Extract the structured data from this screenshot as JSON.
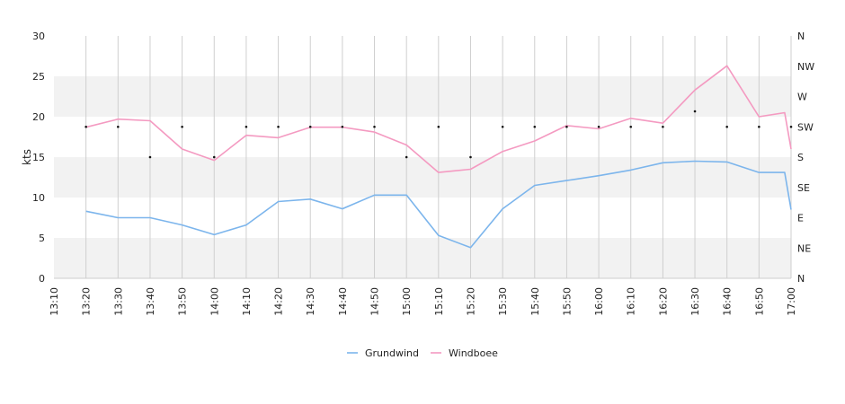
{
  "chart_data": {
    "type": "line",
    "ylabel": "kts",
    "ylim": [
      0,
      30
    ],
    "yticks": [
      0,
      5,
      10,
      15,
      20,
      25,
      30
    ],
    "x": [
      "13:10",
      "13:20",
      "13:30",
      "13:40",
      "13:50",
      "14:00",
      "14:10",
      "14:20",
      "14:30",
      "14:40",
      "14:50",
      "15:00",
      "15:10",
      "15:20",
      "15:30",
      "15:40",
      "15:50",
      "16:00",
      "16:10",
      "16:20",
      "16:30",
      "16:40",
      "16:50",
      "17:00"
    ],
    "series": [
      {
        "name": "Grundwind",
        "color": "#7cb5ec",
        "points": [
          [
            "13:20",
            8.3
          ],
          [
            "13:30",
            7.5
          ],
          [
            "13:40",
            7.5
          ],
          [
            "13:50",
            6.6
          ],
          [
            "14:00",
            5.4
          ],
          [
            "14:10",
            6.6
          ],
          [
            "14:20",
            9.5
          ],
          [
            "14:30",
            9.8
          ],
          [
            "14:40",
            8.6
          ],
          [
            "14:50",
            10.3
          ],
          [
            "15:00",
            10.3
          ],
          [
            "15:10",
            5.3
          ],
          [
            "15:20",
            3.8
          ],
          [
            "15:30",
            8.6
          ],
          [
            "15:40",
            11.5
          ],
          [
            "15:50",
            12.1
          ],
          [
            "16:00",
            12.7
          ],
          [
            "16:10",
            13.4
          ],
          [
            "16:20",
            14.3
          ],
          [
            "16:30",
            14.5
          ],
          [
            "16:40",
            14.4
          ],
          [
            "16:50",
            13.1
          ],
          [
            "16:58",
            13.1
          ],
          [
            "17:00",
            8.5
          ]
        ]
      },
      {
        "name": "Windboee",
        "color": "#f49ac1",
        "points": [
          [
            "13:20",
            18.7
          ],
          [
            "13:30",
            19.7
          ],
          [
            "13:40",
            19.5
          ],
          [
            "13:50",
            16.0
          ],
          [
            "14:00",
            14.6
          ],
          [
            "14:10",
            17.7
          ],
          [
            "14:20",
            17.4
          ],
          [
            "14:30",
            18.7
          ],
          [
            "14:40",
            18.7
          ],
          [
            "14:50",
            18.1
          ],
          [
            "15:00",
            16.5
          ],
          [
            "15:10",
            13.1
          ],
          [
            "15:20",
            13.5
          ],
          [
            "15:30",
            15.7
          ],
          [
            "15:40",
            17.0
          ],
          [
            "15:50",
            18.9
          ],
          [
            "16:00",
            18.5
          ],
          [
            "16:10",
            19.8
          ],
          [
            "16:20",
            19.2
          ],
          [
            "16:30",
            23.3
          ],
          [
            "16:40",
            26.3
          ],
          [
            "16:50",
            20.0
          ],
          [
            "16:58",
            20.5
          ],
          [
            "17:00",
            16.0
          ]
        ]
      }
    ],
    "direction_axis": {
      "labels": [
        "N",
        "NE",
        "E",
        "SE",
        "S",
        "SW",
        "W",
        "NW",
        "N"
      ],
      "range": [
        0,
        360
      ],
      "points": [
        [
          "13:20",
          225
        ],
        [
          "13:30",
          225
        ],
        [
          "13:40",
          180
        ],
        [
          "13:50",
          225
        ],
        [
          "14:00",
          180
        ],
        [
          "14:10",
          225
        ],
        [
          "14:20",
          225
        ],
        [
          "14:30",
          225
        ],
        [
          "14:40",
          225
        ],
        [
          "14:50",
          225
        ],
        [
          "15:00",
          180
        ],
        [
          "15:10",
          225
        ],
        [
          "15:20",
          180
        ],
        [
          "15:30",
          225
        ],
        [
          "15:40",
          225
        ],
        [
          "15:50",
          225
        ],
        [
          "16:00",
          225
        ],
        [
          "16:10",
          225
        ],
        [
          "16:20",
          225
        ],
        [
          "16:30",
          248
        ],
        [
          "16:40",
          225
        ],
        [
          "16:50",
          225
        ],
        [
          "17:00",
          225
        ]
      ]
    },
    "bands": [
      [
        0,
        5
      ],
      [
        10,
        15
      ],
      [
        20,
        25
      ],
      [
        30,
        30
      ]
    ],
    "band_color": "#f2f2f2",
    "grid": true,
    "legend_position": "bottom-center"
  }
}
